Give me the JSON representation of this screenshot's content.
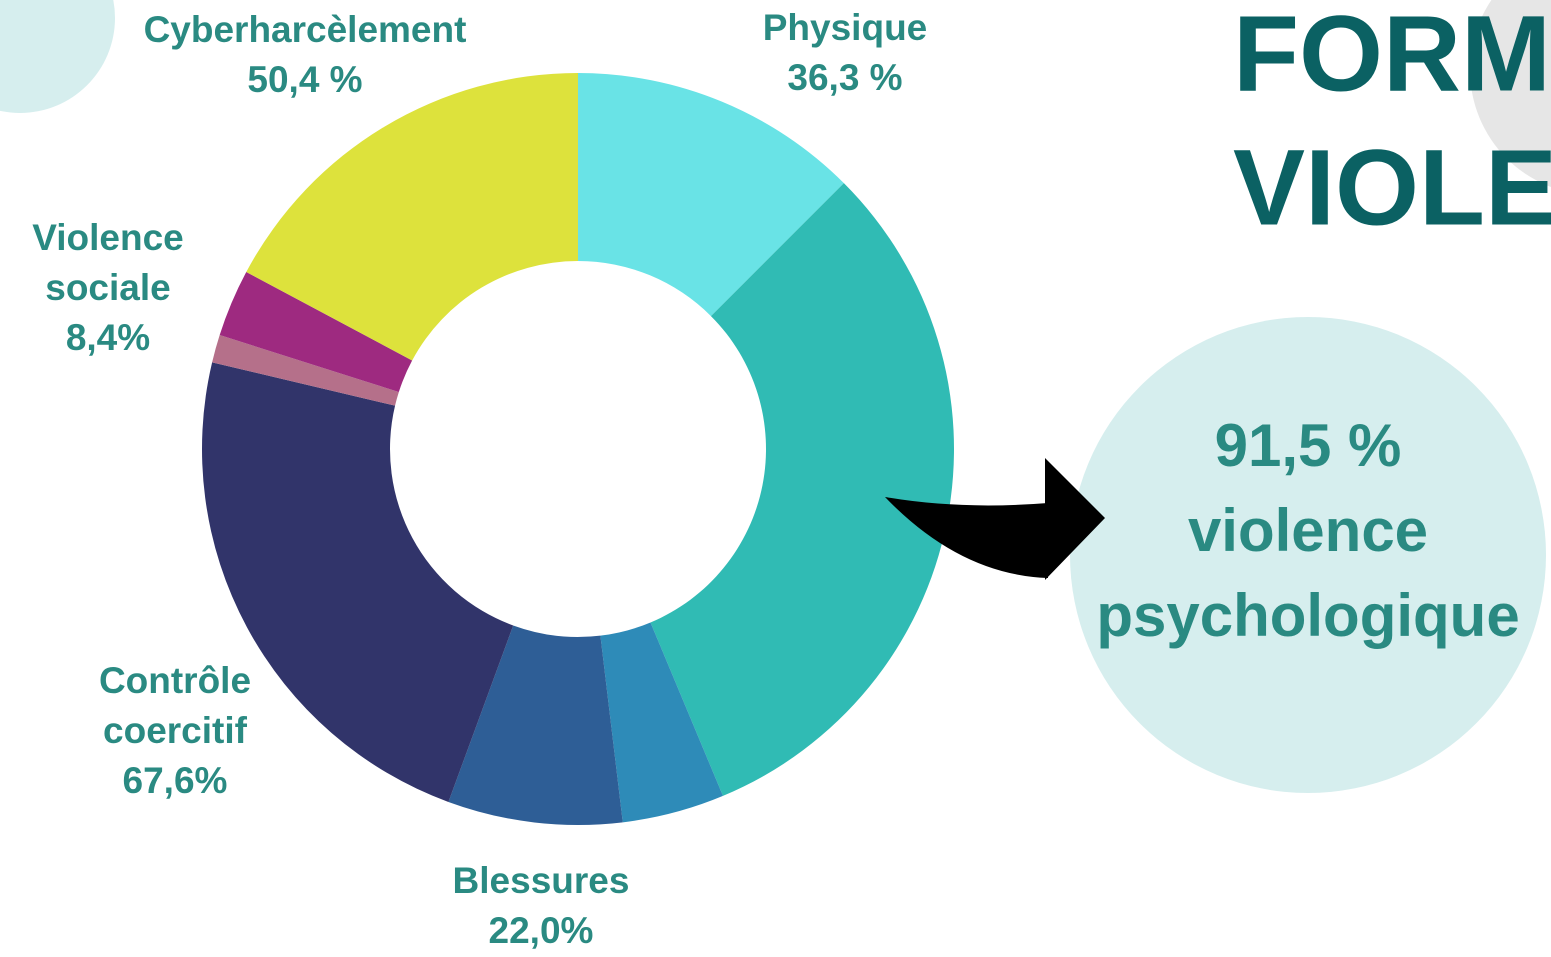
{
  "title_lines": [
    "FORME",
    "VIOLEN"
  ],
  "chart_data": {
    "type": "donut",
    "values": [
      12.5,
      31.2,
      4.4,
      7.5,
      23.1,
      1.2,
      2.9,
      17.2
    ],
    "colors": [
      "#69e3e6",
      "#30bbb4",
      "#2e8bb8",
      "#2e5e96",
      "#31346a",
      "#b5708a",
      "#9e2a80",
      "#dde23c"
    ],
    "annotations": [
      [
        "Cyberharcèlement",
        "50,4 %"
      ],
      [
        "Physique",
        "36,3 %"
      ],
      [
        "Violence",
        "sociale",
        "8,4%"
      ],
      [
        "Contrôle",
        "coercitif",
        "67,6%"
      ],
      [
        "Blessures",
        "22,0%"
      ]
    ]
  },
  "callout": [
    "91,5 %",
    "violence",
    "psychologique"
  ]
}
